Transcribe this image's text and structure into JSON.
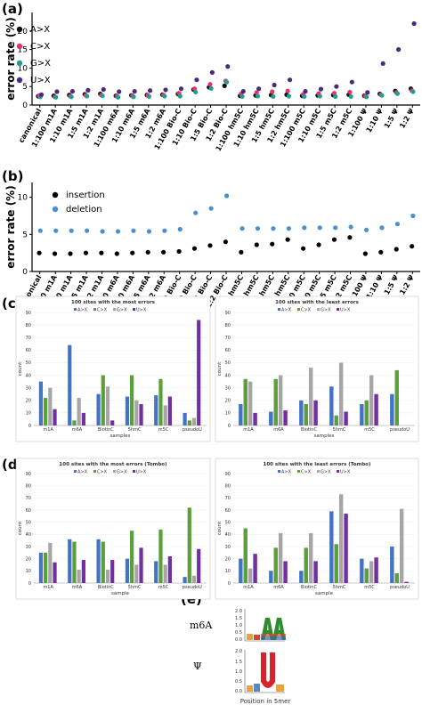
{
  "panels": {
    "a": "(a)",
    "b": "(b)",
    "c": "(c)",
    "d": "(d)",
    "e": "(e)"
  },
  "chart_data": [
    {
      "id": "a",
      "type": "scatter",
      "ylabel": "error rate (%)",
      "ylim": [
        0,
        25
      ],
      "yticks": [
        0,
        5,
        10,
        15,
        20
      ],
      "categories": [
        "canonical",
        "1:100 m1A",
        "1:10 m1A",
        "1:5 m1A",
        "1:2 m1A",
        "1:100 m6A",
        "1:10 m6A",
        "1:5 m6A",
        "1:2 m6A",
        "1:100 Bio-C",
        "1:10 Bio-C",
        "1:5 Bio-C",
        "1:2 Bio-C",
        "1:100 hm5C",
        "1:10 hm5C",
        "1:5 hm5C",
        "1:2 hm5C",
        "1:100 m5C",
        "1:10 m5C",
        "1:5 m5C",
        "1:2 m5C",
        "1:100 Ψ",
        "1:10 Ψ",
        "1:5 Ψ",
        "1:2 Ψ"
      ],
      "series": [
        {
          "name": "A>X",
          "color": "#111111",
          "values": [
            2.4,
            2.5,
            2.7,
            2.9,
            3.0,
            2.5,
            2.6,
            2.7,
            2.8,
            3.0,
            4.2,
            4.8,
            5.2,
            2.5,
            2.6,
            2.7,
            2.8,
            2.5,
            2.6,
            2.7,
            2.8,
            2.5,
            3.0,
            3.8,
            4.4
          ]
        },
        {
          "name": "C>X",
          "color": "#e8336a",
          "values": [
            2.5,
            2.2,
            2.4,
            2.6,
            2.7,
            2.4,
            2.5,
            2.6,
            2.7,
            3.2,
            4.4,
            5.6,
            6.5,
            3.0,
            3.4,
            3.6,
            3.8,
            2.9,
            3.1,
            3.2,
            3.5,
            2.4,
            2.8,
            3.4,
            3.9
          ]
        },
        {
          "name": "G>X",
          "color": "#1f9e93",
          "values": [
            2.2,
            2.1,
            2.2,
            2.4,
            2.5,
            2.1,
            2.2,
            2.3,
            2.4,
            2.4,
            3.5,
            4.5,
            6.2,
            2.3,
            2.4,
            2.3,
            2.4,
            2.3,
            2.4,
            2.3,
            2.3,
            2.2,
            2.6,
            3.1,
            3.6
          ]
        },
        {
          "name": "U>X",
          "color": "#4a2a80",
          "values": [
            2.8,
            3.6,
            3.7,
            4.0,
            4.2,
            3.6,
            3.7,
            3.9,
            4.1,
            4.4,
            6.8,
            8.8,
            10.4,
            3.7,
            4.4,
            5.4,
            6.8,
            3.7,
            4.3,
            5.0,
            6.2,
            3.4,
            11.2,
            15.0,
            22.0
          ]
        }
      ]
    },
    {
      "id": "b",
      "type": "scatter",
      "ylabel": "error rate (%)",
      "ylim": [
        0,
        12
      ],
      "yticks": [
        0,
        5,
        10
      ],
      "categories": [
        "canonical",
        "1:100 m1A",
        "1:10 m1A",
        "1:5 m1A",
        "1:2 m1A",
        "1:100 m6A",
        "1:10 m6A",
        "1:5 m6A",
        "1:2 m6A",
        "1:100 Bio-C",
        "1:10 Bio-C",
        "1:5 Bio-C",
        "1:2 Bio-C",
        "1:100 hm5C",
        "1:10 hm5C",
        "1:5 hm5C",
        "1:2 hm5C",
        "1:100 m5C",
        "1:10 m5C",
        "1:5 m5C",
        "1:2 m5C",
        "1:100 Ψ",
        "1:10 Ψ",
        "1:5 Ψ",
        "1:2 Ψ"
      ],
      "series": [
        {
          "name": "insertion",
          "color": "#000000",
          "values": [
            2.5,
            2.4,
            2.4,
            2.5,
            2.5,
            2.4,
            2.5,
            2.6,
            2.6,
            2.7,
            3.1,
            3.5,
            4.0,
            2.6,
            3.6,
            3.7,
            4.3,
            3.1,
            3.6,
            4.3,
            4.6,
            2.4,
            2.6,
            3.0,
            3.4
          ]
        },
        {
          "name": "deletion",
          "color": "#4a90d0",
          "values": [
            5.5,
            5.5,
            5.5,
            5.5,
            5.4,
            5.4,
            5.5,
            5.4,
            5.5,
            5.7,
            7.9,
            8.5,
            10.2,
            5.8,
            5.8,
            5.8,
            5.8,
            5.9,
            5.9,
            5.9,
            6.0,
            5.6,
            5.9,
            6.4,
            7.5
          ]
        }
      ]
    },
    {
      "id": "c1",
      "type": "bar",
      "title": "100 sites with the most errors",
      "xlabel": "samples",
      "ylabel": "count",
      "ylim": [
        0,
        90
      ],
      "yticks": [
        0,
        10,
        20,
        30,
        40,
        50,
        60,
        70,
        80,
        90
      ],
      "categories": [
        "m1A",
        "m6A",
        "BiotinC",
        "5hmC",
        "m5C",
        "pseudoU"
      ],
      "series": [
        {
          "name": "A>X",
          "color": "#4472c4",
          "values": [
            35,
            64,
            25,
            23,
            24,
            10
          ]
        },
        {
          "name": "C>X",
          "color": "#5b9e3a",
          "values": [
            22,
            4,
            40,
            40,
            37,
            4
          ]
        },
        {
          "name": "G>X",
          "color": "#a6a6a6",
          "values": [
            30,
            22,
            31,
            20,
            16,
            6
          ]
        },
        {
          "name": "U>X",
          "color": "#7030a0",
          "values": [
            13,
            10,
            4,
            17,
            23,
            84
          ]
        }
      ]
    },
    {
      "id": "c2",
      "type": "bar",
      "title": "100 sites with the least errors",
      "xlabel": "samples",
      "ylabel": "count",
      "ylim": [
        0,
        90
      ],
      "yticks": [
        0,
        10,
        20,
        30,
        40,
        50,
        60,
        70,
        80,
        90
      ],
      "categories": [
        "m1A",
        "m6A",
        "BiotinC",
        "5hmC",
        "m5C",
        "pseudoU"
      ],
      "series": [
        {
          "name": "A>X",
          "color": "#4472c4",
          "values": [
            17,
            11,
            20,
            31,
            17,
            25
          ]
        },
        {
          "name": "C>X",
          "color": "#5b9e3a",
          "values": [
            37,
            37,
            17,
            8,
            20,
            44
          ]
        },
        {
          "name": "G>X",
          "color": "#a6a6a6",
          "values": [
            35,
            40,
            46,
            50,
            40,
            0
          ]
        },
        {
          "name": "U>X",
          "color": "#7030a0",
          "values": [
            10,
            12,
            20,
            11,
            25,
            0
          ]
        }
      ]
    },
    {
      "id": "d1",
      "type": "bar",
      "title": "100 sites with the most errors (Tombo)",
      "xlabel": "sample",
      "ylabel": "count",
      "ylim": [
        0,
        90
      ],
      "yticks": [
        0,
        10,
        20,
        30,
        40,
        50,
        60,
        70,
        80,
        90
      ],
      "categories": [
        "m1A",
        "m6A",
        "BiotinC",
        "5hmC",
        "m5C",
        "pseudoU"
      ],
      "series": [
        {
          "name": "A>X",
          "color": "#4472c4",
          "values": [
            25,
            36,
            36,
            20,
            18,
            5
          ]
        },
        {
          "name": "C>X",
          "color": "#5b9e3a",
          "values": [
            25,
            34,
            34,
            43,
            44,
            62
          ]
        },
        {
          "name": "G>X",
          "color": "#a6a6a6",
          "values": [
            33,
            11,
            11,
            15,
            15,
            6
          ]
        },
        {
          "name": "U>X",
          "color": "#7030a0",
          "values": [
            17,
            19,
            19,
            29,
            22,
            28
          ]
        }
      ]
    },
    {
      "id": "d2",
      "type": "bar",
      "title": "100 sites with the least errors (Tombo)",
      "xlabel": "sample",
      "ylabel": "count",
      "ylim": [
        0,
        90
      ],
      "yticks": [
        0,
        10,
        20,
        30,
        40,
        50,
        60,
        70,
        80,
        90
      ],
      "categories": [
        "m1A",
        "m6A",
        "BiotinC",
        "5hmC",
        "m5C",
        "pseudoU"
      ],
      "series": [
        {
          "name": "A>X",
          "color": "#4472c4",
          "values": [
            20,
            10,
            10,
            59,
            20,
            30
          ]
        },
        {
          "name": "C>X",
          "color": "#5b9e3a",
          "values": [
            45,
            29,
            29,
            32,
            12,
            8
          ]
        },
        {
          "name": "G>X",
          "color": "#a6a6a6",
          "values": [
            12,
            41,
            41,
            73,
            18,
            61
          ]
        },
        {
          "name": "U>X",
          "color": "#7030a0",
          "values": [
            24,
            18,
            18,
            57,
            21,
            1
          ]
        }
      ]
    }
  ],
  "logos": {
    "m6a_label": "m6A",
    "psi_label": "Ψ",
    "xlabel": "Position in 5mer",
    "yticks": [
      "2.0",
      "1.5",
      "1.0",
      "0.5",
      "0.0"
    ]
  }
}
